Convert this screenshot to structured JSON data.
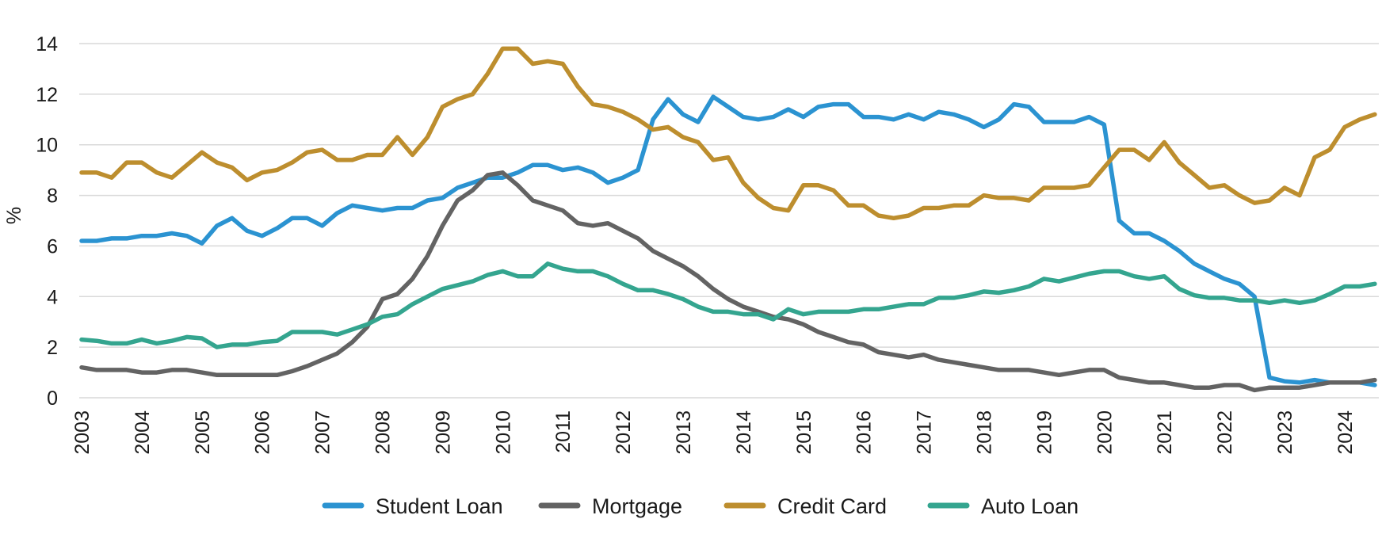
{
  "chart_data": {
    "type": "line",
    "title": "",
    "xlabel": "",
    "ylabel": "%",
    "xlim": [
      2003,
      2024.5
    ],
    "ylim": [
      0,
      14
    ],
    "yticks": [
      0,
      2,
      4,
      6,
      8,
      10,
      12,
      14
    ],
    "xticks": [
      "2003",
      "2004",
      "2005",
      "2006",
      "2007",
      "2008",
      "2009",
      "2010",
      "2011",
      "2012",
      "2013",
      "2014",
      "2015",
      "2016",
      "2017",
      "2018",
      "2019",
      "2020",
      "2021",
      "2022",
      "2023",
      "2024"
    ],
    "grid": true,
    "legend_position": "bottom",
    "series": [
      {
        "name": "Student Loan",
        "color": "#2b93d1",
        "x": [
          2003.0,
          2003.25,
          2003.5,
          2003.75,
          2004.0,
          2004.25,
          2004.5,
          2004.75,
          2005.0,
          2005.25,
          2005.5,
          2005.75,
          2006.0,
          2006.25,
          2006.5,
          2006.75,
          2007.0,
          2007.25,
          2007.5,
          2007.75,
          2008.0,
          2008.25,
          2008.5,
          2008.75,
          2009.0,
          2009.25,
          2009.5,
          2009.75,
          2010.0,
          2010.25,
          2010.5,
          2010.75,
          2011.0,
          2011.25,
          2011.5,
          2011.75,
          2012.0,
          2012.25,
          2012.5,
          2012.75,
          2013.0,
          2013.25,
          2013.5,
          2013.75,
          2014.0,
          2014.25,
          2014.5,
          2014.75,
          2015.0,
          2015.25,
          2015.5,
          2015.75,
          2016.0,
          2016.25,
          2016.5,
          2016.75,
          2017.0,
          2017.25,
          2017.5,
          2017.75,
          2018.0,
          2018.25,
          2018.5,
          2018.75,
          2019.0,
          2019.25,
          2019.5,
          2019.75,
          2020.0,
          2020.25,
          2020.5,
          2020.75,
          2021.0,
          2021.25,
          2021.5,
          2021.75,
          2022.0,
          2022.25,
          2022.5,
          2022.75,
          2023.0,
          2023.25,
          2023.5,
          2023.75,
          2024.0,
          2024.25,
          2024.5
        ],
        "values": [
          6.2,
          6.2,
          6.3,
          6.3,
          6.4,
          6.4,
          6.5,
          6.4,
          6.1,
          6.8,
          7.1,
          6.6,
          6.4,
          6.7,
          7.1,
          7.1,
          6.8,
          7.3,
          7.6,
          7.5,
          7.4,
          7.5,
          7.5,
          7.8,
          7.9,
          8.3,
          8.5,
          8.7,
          8.7,
          8.9,
          9.2,
          9.2,
          9.0,
          9.1,
          8.9,
          8.5,
          8.7,
          9.0,
          11.0,
          11.8,
          11.2,
          10.9,
          11.9,
          11.5,
          11.1,
          11.0,
          11.1,
          11.4,
          11.1,
          11.5,
          11.6,
          11.6,
          11.1,
          11.1,
          11.0,
          11.2,
          11.0,
          11.3,
          11.2,
          11.0,
          10.7,
          11.0,
          11.6,
          11.5,
          10.9,
          10.9,
          10.9,
          11.1,
          10.8,
          7.0,
          6.5,
          6.5,
          6.2,
          5.8,
          5.3,
          5.0,
          4.7,
          4.5,
          4.0,
          0.8,
          0.65,
          0.6,
          0.7,
          0.6,
          0.6,
          0.6,
          0.5
        ]
      },
      {
        "name": "Mortgage",
        "color": "#636363",
        "x": [
          2003.0,
          2003.25,
          2003.5,
          2003.75,
          2004.0,
          2004.25,
          2004.5,
          2004.75,
          2005.0,
          2005.25,
          2005.5,
          2005.75,
          2006.0,
          2006.25,
          2006.5,
          2006.75,
          2007.0,
          2007.25,
          2007.5,
          2007.75,
          2008.0,
          2008.25,
          2008.5,
          2008.75,
          2009.0,
          2009.25,
          2009.5,
          2009.75,
          2010.0,
          2010.25,
          2010.5,
          2010.75,
          2011.0,
          2011.25,
          2011.5,
          2011.75,
          2012.0,
          2012.25,
          2012.5,
          2012.75,
          2013.0,
          2013.25,
          2013.5,
          2013.75,
          2014.0,
          2014.25,
          2014.5,
          2014.75,
          2015.0,
          2015.25,
          2015.5,
          2015.75,
          2016.0,
          2016.25,
          2016.5,
          2016.75,
          2017.0,
          2017.25,
          2017.5,
          2017.75,
          2018.0,
          2018.25,
          2018.5,
          2018.75,
          2019.0,
          2019.25,
          2019.5,
          2019.75,
          2020.0,
          2020.25,
          2020.5,
          2020.75,
          2021.0,
          2021.25,
          2021.5,
          2021.75,
          2022.0,
          2022.25,
          2022.5,
          2022.75,
          2023.0,
          2023.25,
          2023.5,
          2023.75,
          2024.0,
          2024.25,
          2024.5
        ],
        "values": [
          1.2,
          1.1,
          1.1,
          1.1,
          1.0,
          1.0,
          1.1,
          1.1,
          1.0,
          0.9,
          0.9,
          0.9,
          0.9,
          0.9,
          1.05,
          1.25,
          1.5,
          1.75,
          2.2,
          2.8,
          3.9,
          4.1,
          4.7,
          5.6,
          6.8,
          7.8,
          8.2,
          8.8,
          8.9,
          8.4,
          7.8,
          7.6,
          7.4,
          6.9,
          6.8,
          6.9,
          6.6,
          6.3,
          5.8,
          5.5,
          5.2,
          4.8,
          4.3,
          3.9,
          3.6,
          3.4,
          3.2,
          3.1,
          2.9,
          2.6,
          2.4,
          2.2,
          2.1,
          1.8,
          1.7,
          1.6,
          1.7,
          1.5,
          1.4,
          1.3,
          1.2,
          1.1,
          1.1,
          1.1,
          1.0,
          0.9,
          1.0,
          1.1,
          1.1,
          0.8,
          0.7,
          0.6,
          0.6,
          0.5,
          0.4,
          0.4,
          0.5,
          0.5,
          0.3,
          0.4,
          0.4,
          0.4,
          0.5,
          0.6,
          0.6,
          0.6,
          0.7
        ]
      },
      {
        "name": "Credit Card",
        "color": "#bd8e2e",
        "x": [
          2003.0,
          2003.25,
          2003.5,
          2003.75,
          2004.0,
          2004.25,
          2004.5,
          2004.75,
          2005.0,
          2005.25,
          2005.5,
          2005.75,
          2006.0,
          2006.25,
          2006.5,
          2006.75,
          2007.0,
          2007.25,
          2007.5,
          2007.75,
          2008.0,
          2008.25,
          2008.5,
          2008.75,
          2009.0,
          2009.25,
          2009.5,
          2009.75,
          2010.0,
          2010.25,
          2010.5,
          2010.75,
          2011.0,
          2011.25,
          2011.5,
          2011.75,
          2012.0,
          2012.25,
          2012.5,
          2012.75,
          2013.0,
          2013.25,
          2013.5,
          2013.75,
          2014.0,
          2014.25,
          2014.5,
          2014.75,
          2015.0,
          2015.25,
          2015.5,
          2015.75,
          2016.0,
          2016.25,
          2016.5,
          2016.75,
          2017.0,
          2017.25,
          2017.5,
          2017.75,
          2018.0,
          2018.25,
          2018.5,
          2018.75,
          2019.0,
          2019.25,
          2019.5,
          2019.75,
          2020.0,
          2020.25,
          2020.5,
          2020.75,
          2021.0,
          2021.25,
          2021.5,
          2021.75,
          2022.0,
          2022.25,
          2022.5,
          2022.75,
          2023.0,
          2023.25,
          2023.5,
          2023.75,
          2024.0,
          2024.25,
          2024.5
        ],
        "values": [
          8.9,
          8.9,
          8.7,
          9.3,
          9.3,
          8.9,
          8.7,
          9.2,
          9.7,
          9.3,
          9.1,
          8.6,
          8.9,
          9.0,
          9.3,
          9.7,
          9.8,
          9.4,
          9.4,
          9.6,
          9.6,
          10.3,
          9.6,
          10.3,
          11.5,
          11.8,
          12.0,
          12.8,
          13.8,
          13.8,
          13.2,
          13.3,
          13.2,
          12.3,
          11.6,
          11.5,
          11.3,
          11.0,
          10.6,
          10.7,
          10.3,
          10.1,
          9.4,
          9.5,
          8.5,
          7.9,
          7.5,
          7.4,
          8.4,
          8.4,
          8.2,
          7.6,
          7.6,
          7.2,
          7.1,
          7.2,
          7.5,
          7.5,
          7.6,
          7.6,
          8.0,
          7.9,
          7.9,
          7.8,
          8.3,
          8.3,
          8.3,
          8.4,
          9.1,
          9.8,
          9.8,
          9.4,
          10.1,
          9.3,
          8.8,
          8.3,
          8.4,
          8.0,
          7.7,
          7.8,
          8.3,
          8.0,
          9.5,
          9.8,
          10.7,
          11.0,
          11.2
        ]
      },
      {
        "name": "Auto Loan",
        "color": "#34a58f",
        "x": [
          2003.0,
          2003.25,
          2003.5,
          2003.75,
          2004.0,
          2004.25,
          2004.5,
          2004.75,
          2005.0,
          2005.25,
          2005.5,
          2005.75,
          2006.0,
          2006.25,
          2006.5,
          2006.75,
          2007.0,
          2007.25,
          2007.5,
          2007.75,
          2008.0,
          2008.25,
          2008.5,
          2008.75,
          2009.0,
          2009.25,
          2009.5,
          2009.75,
          2010.0,
          2010.25,
          2010.5,
          2010.75,
          2011.0,
          2011.25,
          2011.5,
          2011.75,
          2012.0,
          2012.25,
          2012.5,
          2012.75,
          2013.0,
          2013.25,
          2013.5,
          2013.75,
          2014.0,
          2014.25,
          2014.5,
          2014.75,
          2015.0,
          2015.25,
          2015.5,
          2015.75,
          2016.0,
          2016.25,
          2016.5,
          2016.75,
          2017.0,
          2017.25,
          2017.5,
          2017.75,
          2018.0,
          2018.25,
          2018.5,
          2018.75,
          2019.0,
          2019.25,
          2019.5,
          2019.75,
          2020.0,
          2020.25,
          2020.5,
          2020.75,
          2021.0,
          2021.25,
          2021.5,
          2021.75,
          2022.0,
          2022.25,
          2022.5,
          2022.75,
          2023.0,
          2023.25,
          2023.5,
          2023.75,
          2024.0,
          2024.25,
          2024.5
        ],
        "values": [
          2.3,
          2.25,
          2.15,
          2.15,
          2.3,
          2.15,
          2.25,
          2.4,
          2.35,
          2.0,
          2.1,
          2.1,
          2.2,
          2.25,
          2.6,
          2.6,
          2.6,
          2.5,
          2.7,
          2.9,
          3.2,
          3.3,
          3.7,
          4.0,
          4.3,
          4.45,
          4.6,
          4.85,
          5.0,
          4.8,
          4.8,
          5.3,
          5.1,
          5.0,
          5.0,
          4.8,
          4.5,
          4.25,
          4.25,
          4.1,
          3.9,
          3.6,
          3.4,
          3.4,
          3.3,
          3.3,
          3.1,
          3.5,
          3.3,
          3.4,
          3.4,
          3.4,
          3.5,
          3.5,
          3.6,
          3.7,
          3.7,
          3.95,
          3.95,
          4.05,
          4.2,
          4.15,
          4.25,
          4.4,
          4.7,
          4.6,
          4.75,
          4.9,
          5.0,
          5.0,
          4.8,
          4.7,
          4.8,
          4.3,
          4.05,
          3.95,
          3.95,
          3.85,
          3.85,
          3.75,
          3.85,
          3.75,
          3.85,
          4.1,
          4.4,
          4.4,
          4.5
        ]
      }
    ]
  }
}
